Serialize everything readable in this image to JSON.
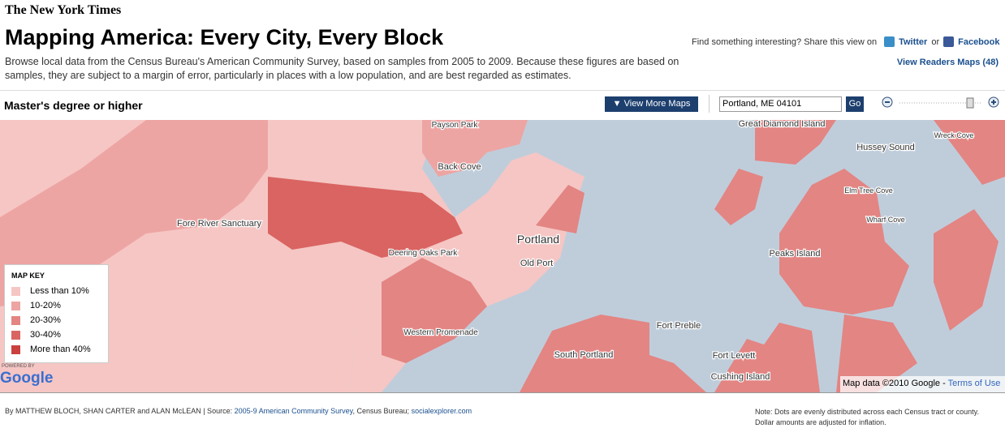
{
  "header": {
    "logo": "The New York Times",
    "title": "Mapping America: Every City, Every Block",
    "description": "Browse local data from the Census Bureau's American Community Survey, based on samples from 2005 to 2009. Because these figures are based on samples, they are subject to a margin of error, particularly in places with a low population, and are best regarded as estimates.",
    "share_prompt": "Find something interesting? Share this view on",
    "twitter": "Twitter",
    "or": "or",
    "facebook": "Facebook",
    "readers_maps": "View Readers Maps (48)"
  },
  "toolbar": {
    "map_title": "Master's degree or higher",
    "more_maps": "View More Maps",
    "search": "Portland, ME 04101",
    "go": "Go"
  },
  "map": {
    "labels": [
      "Payson Park",
      "Back Cove",
      "Fore River Sanctuary",
      "Portland",
      "Deering Oaks Park",
      "Old Port",
      "Western Promenade",
      "Fort Preble",
      "South Portland",
      "Fort Levett",
      "Cushing Island",
      "Great Diamond Island",
      "Hussey Sound",
      "Wreck Cove",
      "Elm Tree Cove",
      "Wharf Cove",
      "Peaks Island"
    ],
    "key": {
      "title": "MAP KEY",
      "items": [
        {
          "label": "Less than 10%",
          "color": "#f5c6c4"
        },
        {
          "label": "10-20%",
          "color": "#eda5a3"
        },
        {
          "label": "20-30%",
          "color": "#e38583"
        },
        {
          "label": "30-40%",
          "color": "#d96462"
        },
        {
          "label": "More than 40%",
          "color": "#c9403e"
        }
      ]
    },
    "powered_by": "POWERED BY",
    "google_logo": "Google",
    "map_data": "Map data ©2010",
    "google": "Google -",
    "terms": "Terms of Use"
  },
  "footer": {
    "byline": "By MATTHEW BLOCH, SHAN CARTER and ALAN McLEAN | Source:",
    "source_link": "2005-9 American Community Survey",
    "source_rest": ", Census Bureau;",
    "explorer_link": "socialexplorer.com",
    "note": "Note: Dots are evenly distributed across each Census tract or county. Dollar amounts are adjusted for inflation."
  }
}
